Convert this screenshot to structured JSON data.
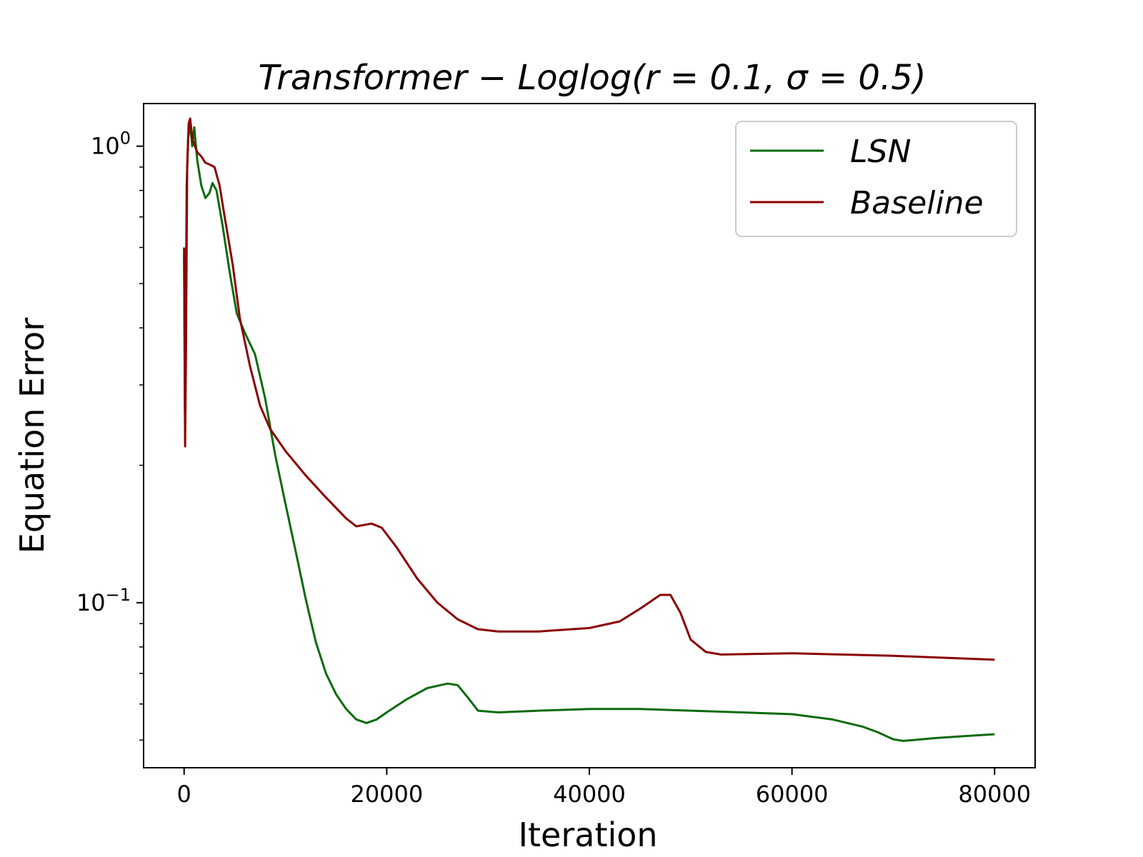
{
  "chart_data": {
    "type": "line",
    "title": "Transformer − Loglog(r = 0.1, σ = 0.5)",
    "xlabel": "Iteration",
    "ylabel": "Equation Error",
    "xlim": [
      -4000,
      84000
    ],
    "ylim": [
      0.0435,
      1.24
    ],
    "yscale": "log",
    "grid": false,
    "legend_position": "top-right",
    "x_ticks": [
      0,
      20000,
      40000,
      60000,
      80000
    ],
    "x_tick_labels": [
      "0",
      "20000",
      "40000",
      "60000",
      "80000"
    ],
    "y_ticks": [
      1,
      0.1
    ],
    "y_tick_labels": [
      {
        "base": "10",
        "exp": "0"
      },
      {
        "base": "10",
        "exp": "−1"
      }
    ],
    "series": [
      {
        "name": "LSN",
        "color": "#0a6b0a",
        "points": [
          [
            0,
            0.58
          ],
          [
            80,
            0.26
          ],
          [
            150,
            0.4
          ],
          [
            250,
            0.82
          ],
          [
            400,
            1.04
          ],
          [
            600,
            1.12
          ],
          [
            800,
            1.0
          ],
          [
            1000,
            1.1
          ],
          [
            1300,
            0.93
          ],
          [
            1700,
            0.82
          ],
          [
            2100,
            0.77
          ],
          [
            2500,
            0.79
          ],
          [
            2800,
            0.83
          ],
          [
            3200,
            0.8
          ],
          [
            3800,
            0.67
          ],
          [
            4500,
            0.53
          ],
          [
            5200,
            0.43
          ],
          [
            6000,
            0.39
          ],
          [
            7000,
            0.35
          ],
          [
            8000,
            0.28
          ],
          [
            9000,
            0.21
          ],
          [
            10000,
            0.165
          ],
          [
            11000,
            0.13
          ],
          [
            12000,
            0.102
          ],
          [
            13000,
            0.082
          ],
          [
            14000,
            0.07
          ],
          [
            15000,
            0.063
          ],
          [
            16000,
            0.0585
          ],
          [
            17000,
            0.0555
          ],
          [
            18000,
            0.0545
          ],
          [
            19000,
            0.0555
          ],
          [
            20000,
            0.0575
          ],
          [
            22000,
            0.0615
          ],
          [
            24000,
            0.065
          ],
          [
            26000,
            0.0665
          ],
          [
            27000,
            0.066
          ],
          [
            28000,
            0.062
          ],
          [
            29000,
            0.058
          ],
          [
            31000,
            0.0575
          ],
          [
            35000,
            0.058
          ],
          [
            40000,
            0.0585
          ],
          [
            45000,
            0.0585
          ],
          [
            50000,
            0.058
          ],
          [
            55000,
            0.0575
          ],
          [
            60000,
            0.057
          ],
          [
            64000,
            0.0555
          ],
          [
            67000,
            0.0535
          ],
          [
            68500,
            0.052
          ],
          [
            70000,
            0.0502
          ],
          [
            71000,
            0.0498
          ],
          [
            74000,
            0.0505
          ],
          [
            77000,
            0.051
          ],
          [
            80000,
            0.0515
          ]
        ]
      },
      {
        "name": "Baseline",
        "color": "#8b0000",
        "points": [
          [
            0,
            0.6
          ],
          [
            100,
            0.22
          ],
          [
            180,
            0.35
          ],
          [
            300,
            0.9
          ],
          [
            450,
            1.12
          ],
          [
            600,
            1.15
          ],
          [
            800,
            1.04
          ],
          [
            1000,
            1.01
          ],
          [
            1300,
            0.97
          ],
          [
            1700,
            0.95
          ],
          [
            2100,
            0.92
          ],
          [
            2600,
            0.91
          ],
          [
            3000,
            0.9
          ],
          [
            3500,
            0.82
          ],
          [
            4000,
            0.7
          ],
          [
            4800,
            0.55
          ],
          [
            5500,
            0.42
          ],
          [
            6500,
            0.33
          ],
          [
            7500,
            0.27
          ],
          [
            8500,
            0.24
          ],
          [
            10000,
            0.215
          ],
          [
            12000,
            0.19
          ],
          [
            14000,
            0.17
          ],
          [
            16000,
            0.153
          ],
          [
            17000,
            0.147
          ],
          [
            18500,
            0.149
          ],
          [
            19500,
            0.146
          ],
          [
            21000,
            0.132
          ],
          [
            23000,
            0.113
          ],
          [
            25000,
            0.1
          ],
          [
            27000,
            0.092
          ],
          [
            29000,
            0.0875
          ],
          [
            31000,
            0.0865
          ],
          [
            35000,
            0.0865
          ],
          [
            40000,
            0.088
          ],
          [
            43000,
            0.091
          ],
          [
            45000,
            0.097
          ],
          [
            47000,
            0.104
          ],
          [
            48000,
            0.104
          ],
          [
            49000,
            0.095
          ],
          [
            50000,
            0.083
          ],
          [
            51500,
            0.078
          ],
          [
            53000,
            0.077
          ],
          [
            60000,
            0.0775
          ],
          [
            70000,
            0.0765
          ],
          [
            80000,
            0.075
          ]
        ]
      }
    ]
  }
}
